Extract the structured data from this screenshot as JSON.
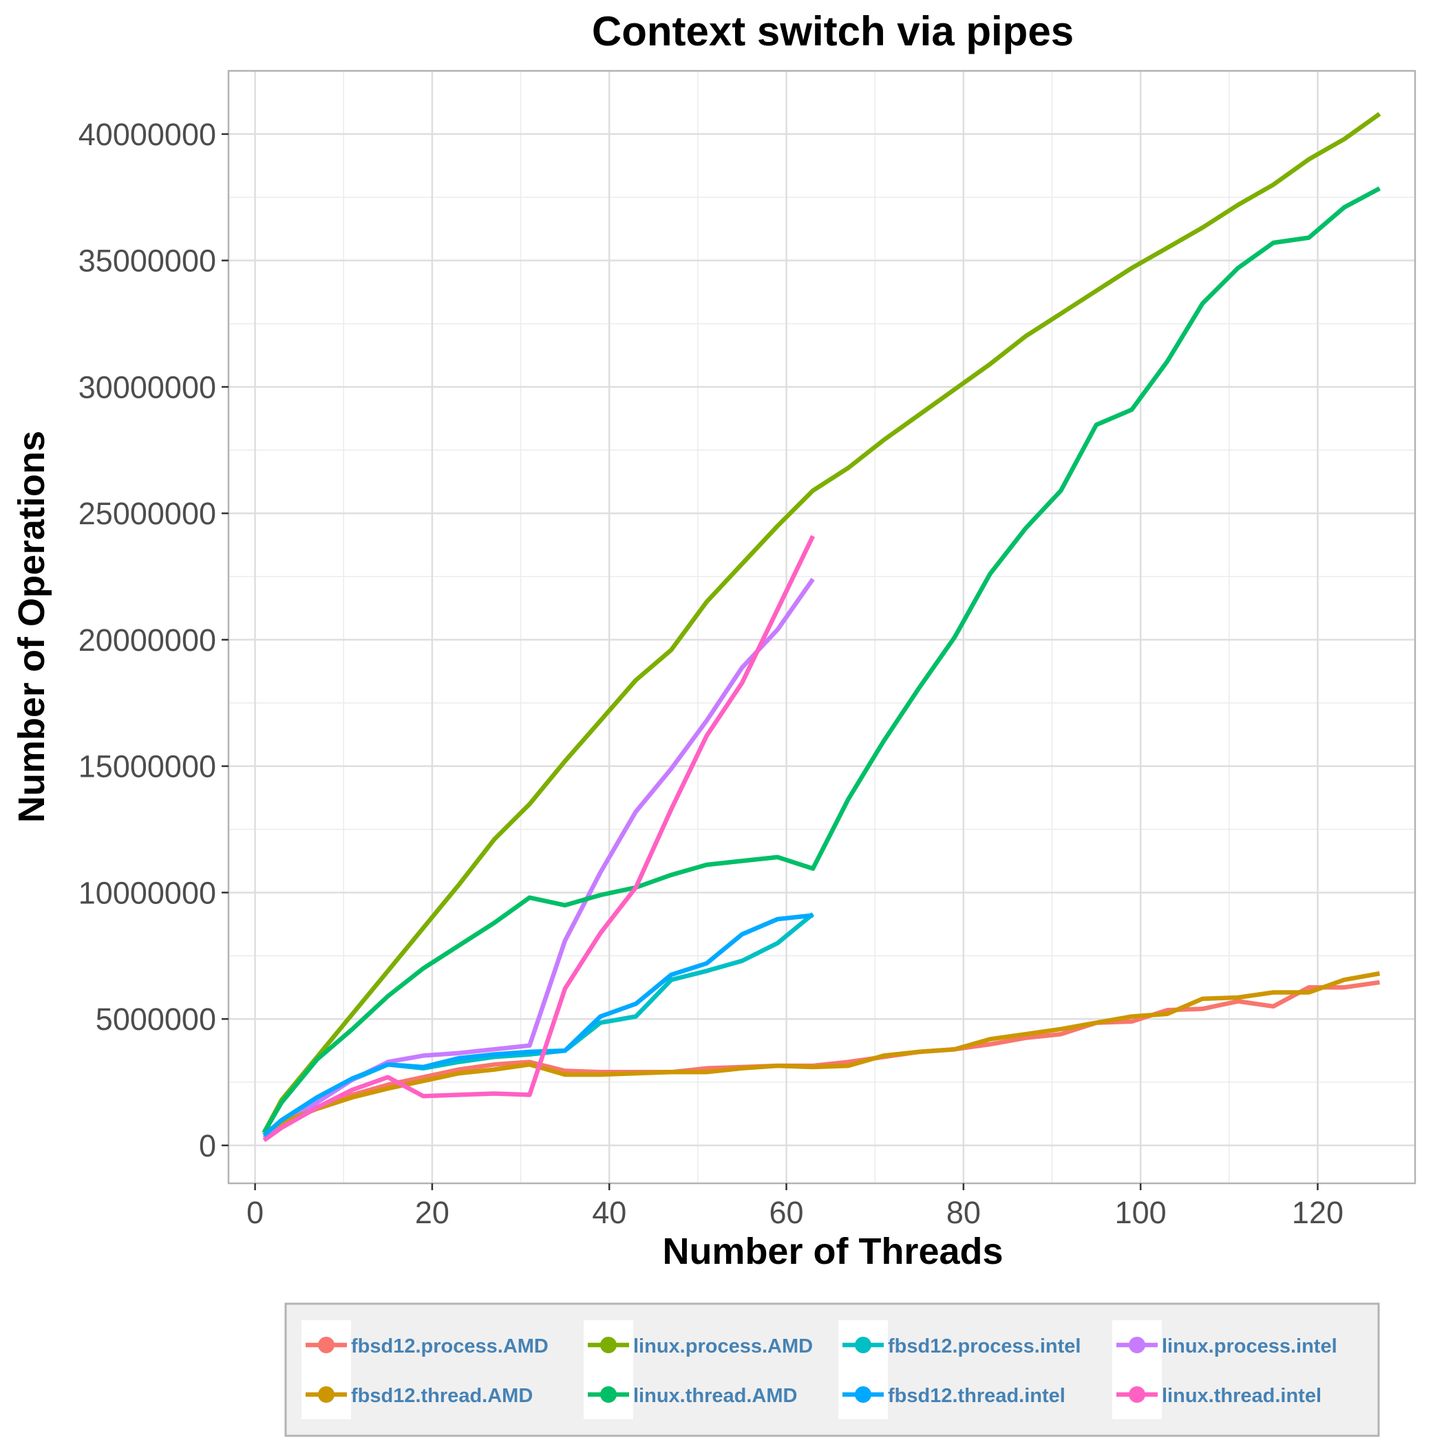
{
  "chart_data": {
    "type": "line",
    "title": "Context switch via pipes",
    "xlabel": "Number of Threads",
    "ylabel": "Number of Operations",
    "xlim": [
      -3,
      131
    ],
    "ylim": [
      -1500000,
      42500000
    ],
    "x_ticks": [
      0,
      20,
      40,
      60,
      80,
      100,
      120
    ],
    "x_tick_labels": [
      "0",
      "20",
      "40",
      "60",
      "80",
      "100",
      "120"
    ],
    "y_ticks": [
      0,
      5000000,
      10000000,
      15000000,
      20000000,
      25000000,
      30000000,
      35000000,
      40000000
    ],
    "y_tick_labels": [
      "0",
      "5000000",
      "10000000",
      "15000000",
      "20000000",
      "25000000",
      "30000000",
      "35000000",
      "40000000"
    ],
    "grid": true,
    "legend_position": "bottom",
    "series": [
      {
        "name": "fbsd12.process.AMD",
        "color": "#F8766D",
        "x": [
          1,
          3,
          7,
          11,
          15,
          19,
          23,
          27,
          31,
          35,
          39,
          43,
          47,
          51,
          55,
          59,
          63,
          67,
          71,
          75,
          79,
          83,
          87,
          91,
          95,
          99,
          103,
          107,
          111,
          115,
          119,
          123,
          127
        ],
        "y": [
          400000,
          800000,
          1500000,
          2000000,
          2400000,
          2700000,
          3000000,
          3200000,
          3300000,
          2950000,
          2900000,
          2900000,
          2900000,
          3050000,
          3100000,
          3150000,
          3150000,
          3300000,
          3500000,
          3700000,
          3800000,
          4000000,
          4250000,
          4400000,
          4850000,
          4900000,
          5350000,
          5400000,
          5700000,
          5500000,
          6250000,
          6250000,
          6450000
        ]
      },
      {
        "name": "linux.process.AMD",
        "color": "#7CAE00",
        "x": [
          1,
          3,
          7,
          11,
          15,
          19,
          23,
          27,
          31,
          35,
          39,
          43,
          47,
          51,
          55,
          59,
          63,
          67,
          71,
          75,
          79,
          83,
          87,
          91,
          95,
          99,
          103,
          107,
          111,
          115,
          119,
          123,
          127
        ],
        "y": [
          500000,
          1800000,
          3500000,
          5200000,
          6900000,
          8600000,
          10300000,
          12100000,
          13500000,
          15200000,
          16800000,
          18400000,
          19600000,
          21500000,
          23000000,
          24500000,
          25900000,
          26800000,
          27900000,
          28900000,
          29900000,
          30900000,
          32000000,
          32900000,
          33800000,
          34700000,
          35500000,
          36300000,
          37200000,
          38000000,
          39000000,
          39800000,
          40800000
        ]
      },
      {
        "name": "fbsd12.process.intel",
        "color": "#00BFC4",
        "x": [
          1,
          3,
          7,
          11,
          15,
          19,
          23,
          27,
          31,
          35,
          39,
          43,
          47,
          51,
          55,
          59,
          63
        ],
        "y": [
          400000,
          900000,
          1800000,
          2600000,
          3200000,
          3050000,
          3300000,
          3500000,
          3600000,
          3750000,
          4850000,
          5100000,
          6550000,
          6900000,
          7300000,
          8000000,
          9150000
        ]
      },
      {
        "name": "linux.process.intel",
        "color": "#C77CFF",
        "x": [
          1,
          3,
          7,
          11,
          15,
          19,
          23,
          27,
          31,
          35,
          39,
          43,
          47,
          51,
          55,
          59,
          63
        ],
        "y": [
          300000,
          800000,
          1700000,
          2600000,
          3300000,
          3550000,
          3650000,
          3800000,
          3950000,
          8100000,
          10800000,
          13200000,
          14900000,
          16800000,
          18900000,
          20400000,
          22400000
        ]
      },
      {
        "name": "fbsd12.thread.AMD",
        "color": "#CD9600",
        "x": [
          1,
          3,
          7,
          11,
          15,
          19,
          23,
          27,
          31,
          35,
          39,
          43,
          47,
          51,
          55,
          59,
          63,
          67,
          71,
          75,
          79,
          83,
          87,
          91,
          95,
          99,
          103,
          107,
          111,
          115,
          119,
          123,
          127
        ],
        "y": [
          500000,
          900000,
          1450000,
          1900000,
          2250000,
          2550000,
          2850000,
          3000000,
          3200000,
          2800000,
          2800000,
          2850000,
          2900000,
          2900000,
          3050000,
          3150000,
          3100000,
          3150000,
          3550000,
          3700000,
          3800000,
          4200000,
          4400000,
          4600000,
          4850000,
          5100000,
          5200000,
          5800000,
          5850000,
          6050000,
          6050000,
          6550000,
          6800000
        ]
      },
      {
        "name": "linux.thread.AMD",
        "color": "#00BE67",
        "x": [
          1,
          3,
          7,
          11,
          15,
          19,
          23,
          27,
          31,
          35,
          39,
          43,
          47,
          51,
          55,
          59,
          63,
          67,
          71,
          75,
          79,
          83,
          87,
          91,
          95,
          99,
          103,
          107,
          111,
          115,
          119,
          123,
          127
        ],
        "y": [
          500000,
          1700000,
          3400000,
          4600000,
          5900000,
          7000000,
          7900000,
          8800000,
          9800000,
          9500000,
          9900000,
          10200000,
          10700000,
          11100000,
          11250000,
          11400000,
          10950000,
          13700000,
          16000000,
          18100000,
          20100000,
          22600000,
          24400000,
          25900000,
          28500000,
          29100000,
          31000000,
          33300000,
          34700000,
          35700000,
          35900000,
          37100000,
          37850000
        ]
      },
      {
        "name": "fbsd12.thread.intel",
        "color": "#00A9FF",
        "x": [
          1,
          3,
          7,
          11,
          15,
          19,
          23,
          27,
          31,
          35,
          39,
          43,
          47,
          51,
          55,
          59,
          63
        ],
        "y": [
          400000,
          1000000,
          1900000,
          2650000,
          3200000,
          3100000,
          3450000,
          3600000,
          3700000,
          3750000,
          5100000,
          5600000,
          6750000,
          7200000,
          8350000,
          8950000,
          9100000
        ]
      },
      {
        "name": "linux.thread.intel",
        "color": "#FF61C3",
        "x": [
          1,
          3,
          7,
          11,
          15,
          19,
          23,
          27,
          31,
          35,
          39,
          43,
          47,
          51,
          55,
          59,
          63
        ],
        "y": [
          200000,
          700000,
          1500000,
          2200000,
          2700000,
          1950000,
          2000000,
          2050000,
          2000000,
          6200000,
          8400000,
          10200000,
          13300000,
          16200000,
          18300000,
          21200000,
          24100000
        ]
      }
    ]
  }
}
